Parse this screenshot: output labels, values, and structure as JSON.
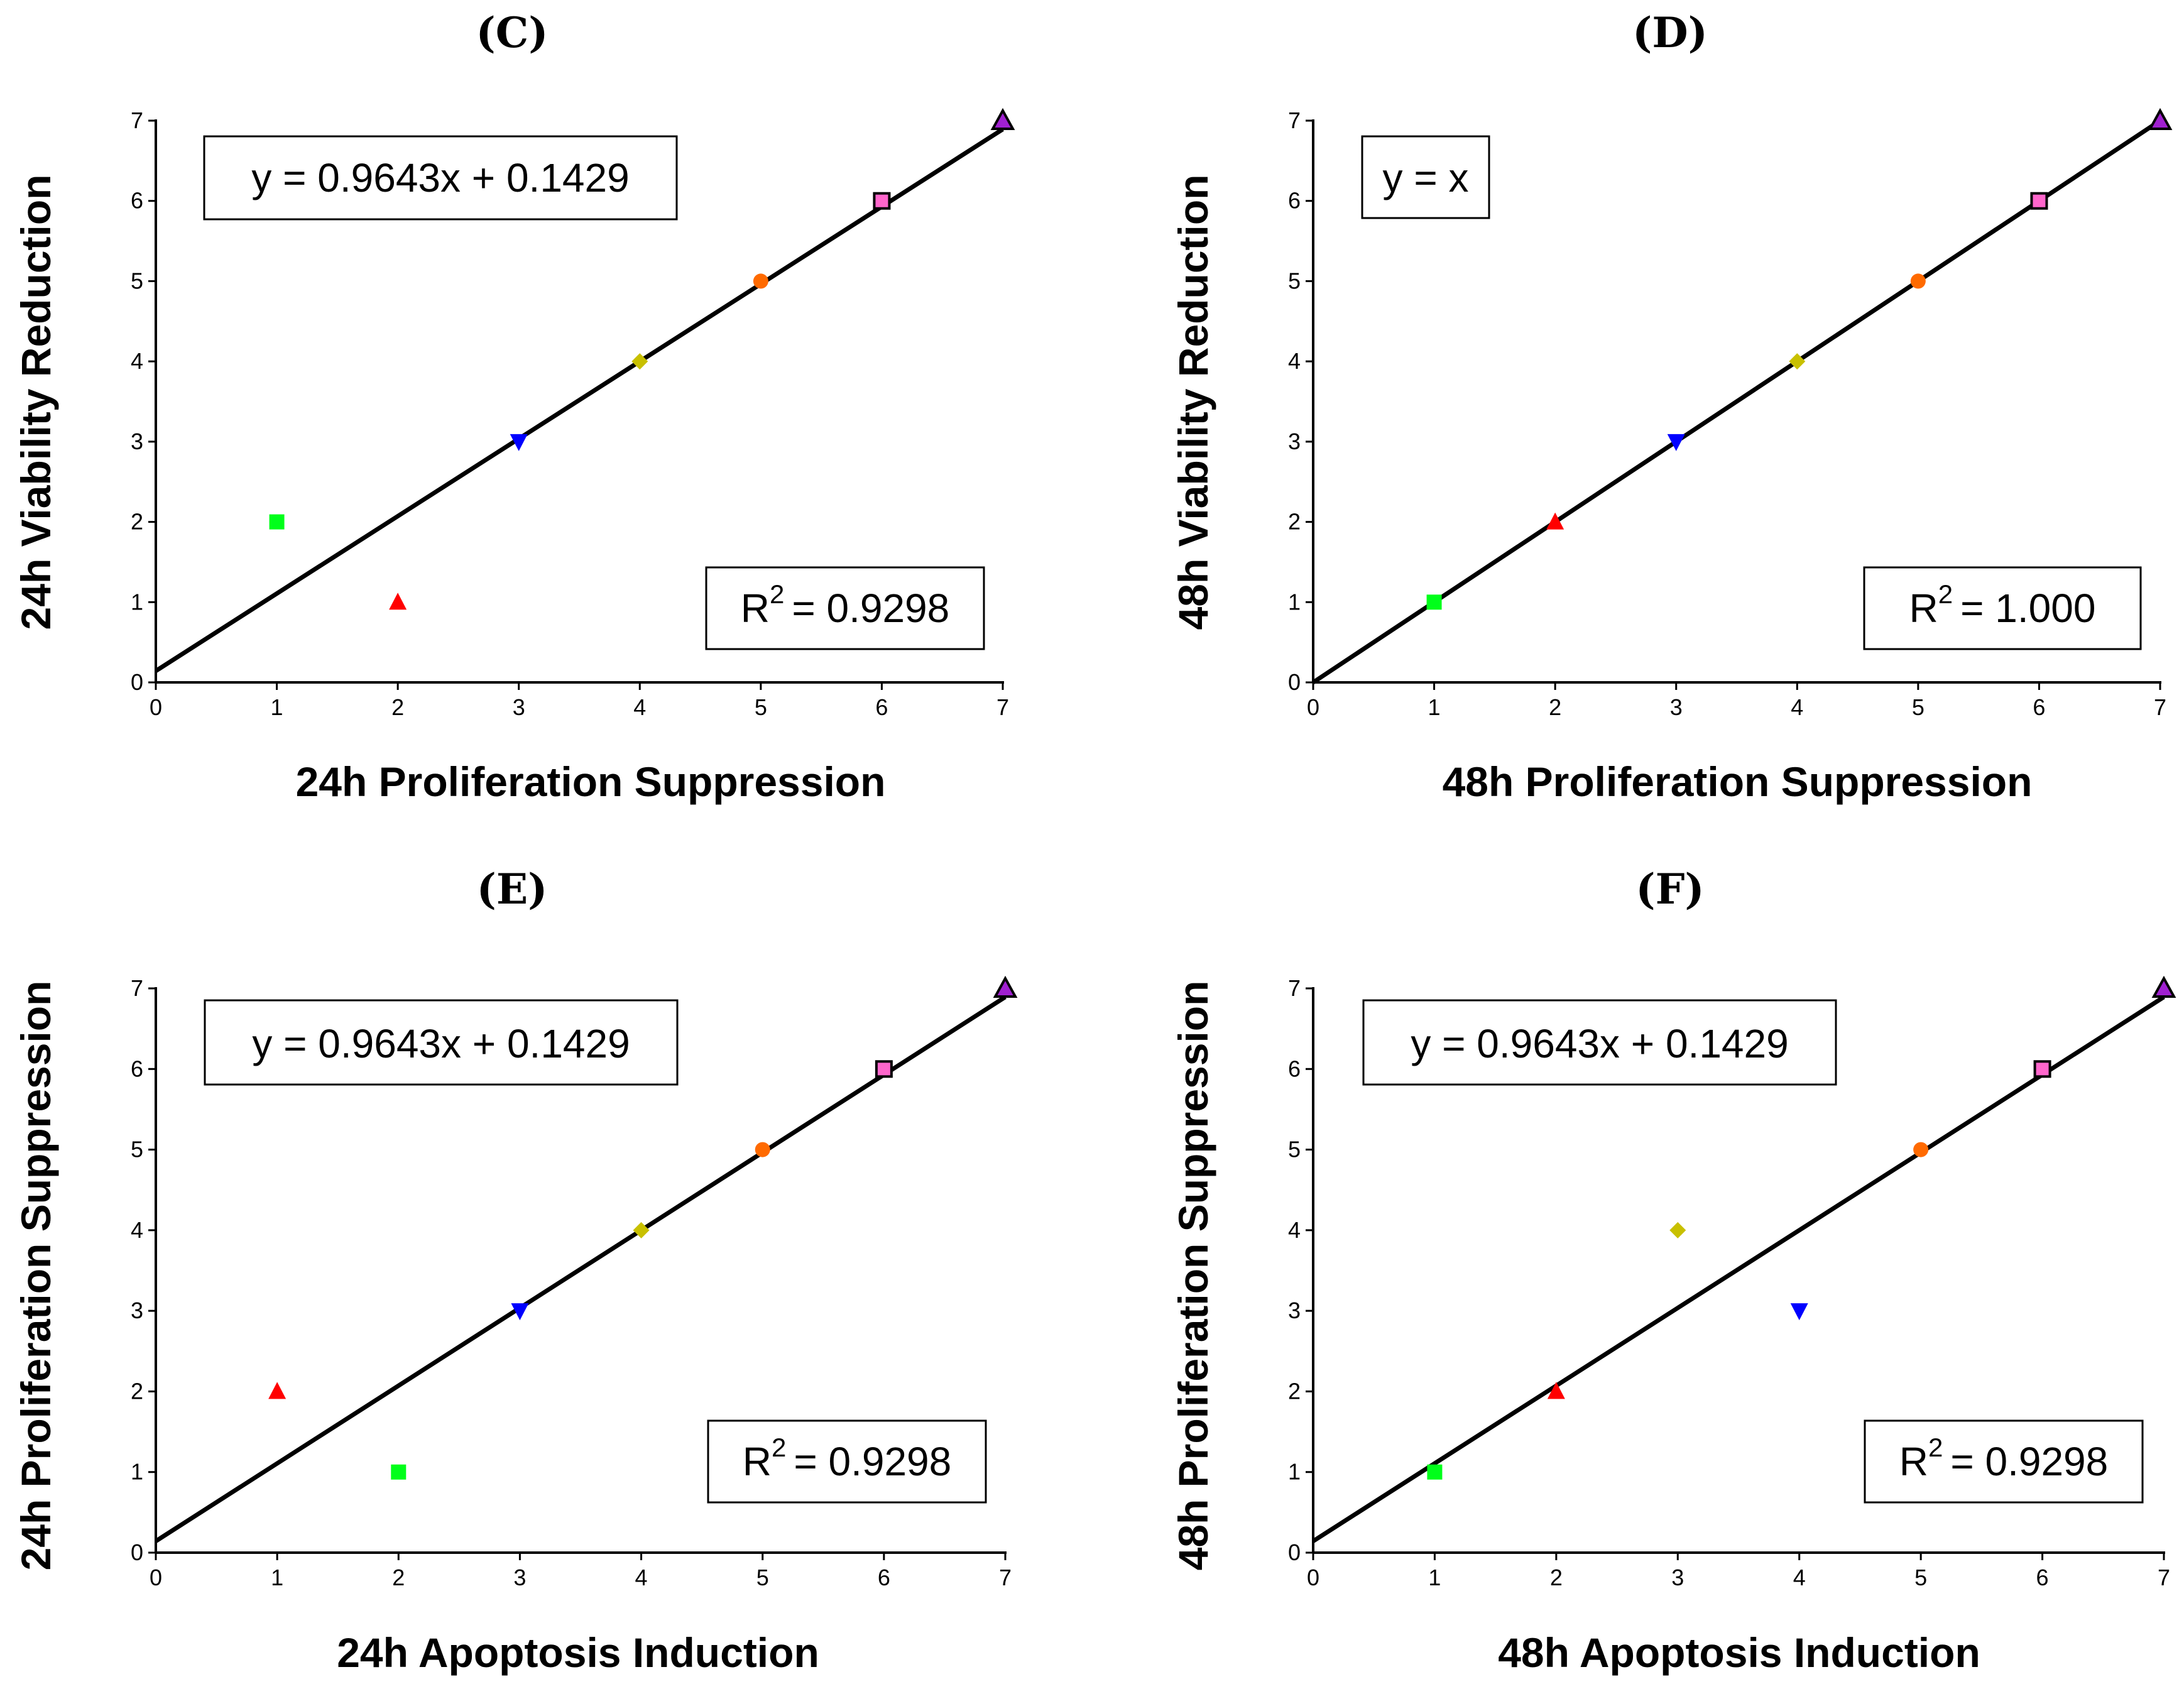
{
  "colors": {
    "square_green": "#00ff1a",
    "triangle_red": "#ff0000",
    "triangle_down_blue": "#0000ff",
    "diamond_olive": "#c8c000",
    "circle_orange": "#ff6a00",
    "square_pink": "#ff66cc",
    "triangle_purple": "#a020d0"
  },
  "chart_data": [
    {
      "panel": "(C)",
      "type": "scatter",
      "xlabel": "24h Proliferation Suppression",
      "ylabel": "24h Viability Reduction",
      "xlim": [
        0,
        7
      ],
      "ylim": [
        0,
        7
      ],
      "xticks": [
        "0",
        "1",
        "2",
        "3",
        "4",
        "5",
        "6",
        "7"
      ],
      "yticks": [
        "0",
        "1",
        "2",
        "3",
        "4",
        "5",
        "6",
        "7"
      ],
      "equation": "y = 0.9643x + 0.1429",
      "r2_label": "R",
      "r2_sup": "2",
      "r2_value": "= 0.9298",
      "fit": {
        "slope": 0.9643,
        "intercept": 0.1429
      },
      "points": [
        {
          "x": 1,
          "y": 2,
          "marker": "square",
          "color": "#00ff1a"
        },
        {
          "x": 2,
          "y": 1,
          "marker": "triangle-up",
          "color": "#ff0000"
        },
        {
          "x": 3,
          "y": 3,
          "marker": "triangle-down",
          "color": "#0000ff"
        },
        {
          "x": 4,
          "y": 4,
          "marker": "diamond",
          "color": "#c8c000"
        },
        {
          "x": 5,
          "y": 5,
          "marker": "circle",
          "color": "#ff6a00"
        },
        {
          "x": 6,
          "y": 6,
          "marker": "square-outline",
          "color": "#ff66cc"
        },
        {
          "x": 7,
          "y": 7,
          "marker": "triangle-outline",
          "color": "#a020d0"
        }
      ]
    },
    {
      "panel": "(D)",
      "type": "scatter",
      "xlabel": "48h Proliferation Suppression",
      "ylabel": "48h Viability Reduction",
      "xlim": [
        0,
        7
      ],
      "ylim": [
        0,
        7
      ],
      "xticks": [
        "0",
        "1",
        "2",
        "3",
        "4",
        "5",
        "6",
        "7"
      ],
      "yticks": [
        "0",
        "1",
        "2",
        "3",
        "4",
        "5",
        "6",
        "7"
      ],
      "equation": "y = x",
      "r2_label": "R",
      "r2_sup": "2",
      "r2_value": "= 1.000",
      "fit": {
        "slope": 1.0,
        "intercept": 0.0
      },
      "points": [
        {
          "x": 1,
          "y": 1,
          "marker": "square",
          "color": "#00ff1a"
        },
        {
          "x": 2,
          "y": 2,
          "marker": "triangle-up",
          "color": "#ff0000"
        },
        {
          "x": 3,
          "y": 3,
          "marker": "triangle-down",
          "color": "#0000ff"
        },
        {
          "x": 4,
          "y": 4,
          "marker": "diamond",
          "color": "#c8c000"
        },
        {
          "x": 5,
          "y": 5,
          "marker": "circle",
          "color": "#ff6a00"
        },
        {
          "x": 6,
          "y": 6,
          "marker": "square-outline",
          "color": "#ff66cc"
        },
        {
          "x": 7,
          "y": 7,
          "marker": "triangle-outline",
          "color": "#a020d0"
        }
      ]
    },
    {
      "panel": "(E)",
      "type": "scatter",
      "xlabel": "24h Apoptosis Induction",
      "ylabel": "24h Proliferation Suppression",
      "xlim": [
        0,
        7
      ],
      "ylim": [
        0,
        7
      ],
      "xticks": [
        "0",
        "1",
        "2",
        "3",
        "4",
        "5",
        "6",
        "7"
      ],
      "yticks": [
        "0",
        "1",
        "2",
        "3",
        "4",
        "5",
        "6",
        "7"
      ],
      "equation": "y = 0.9643x + 0.1429",
      "r2_label": "R",
      "r2_sup": "2",
      "r2_value": "= 0.9298",
      "fit": {
        "slope": 0.9643,
        "intercept": 0.1429
      },
      "points": [
        {
          "x": 1,
          "y": 2,
          "marker": "triangle-up",
          "color": "#ff0000"
        },
        {
          "x": 2,
          "y": 1,
          "marker": "square",
          "color": "#00ff1a"
        },
        {
          "x": 3,
          "y": 3,
          "marker": "triangle-down",
          "color": "#0000ff"
        },
        {
          "x": 4,
          "y": 4,
          "marker": "diamond",
          "color": "#c8c000"
        },
        {
          "x": 5,
          "y": 5,
          "marker": "circle",
          "color": "#ff6a00"
        },
        {
          "x": 6,
          "y": 6,
          "marker": "square-outline",
          "color": "#ff66cc"
        },
        {
          "x": 7,
          "y": 7,
          "marker": "triangle-outline",
          "color": "#a020d0"
        }
      ]
    },
    {
      "panel": "(F)",
      "type": "scatter",
      "xlabel": "48h Apoptosis Induction",
      "ylabel": "48h Proliferation Suppression",
      "xlim": [
        0,
        7
      ],
      "ylim": [
        0,
        7
      ],
      "xticks": [
        "0",
        "1",
        "2",
        "3",
        "4",
        "5",
        "6",
        "7"
      ],
      "yticks": [
        "0",
        "1",
        "2",
        "3",
        "4",
        "5",
        "6",
        "7"
      ],
      "equation": "y = 0.9643x + 0.1429",
      "r2_label": "R",
      "r2_sup": "2",
      "r2_value": "= 0.9298",
      "fit": {
        "slope": 0.9643,
        "intercept": 0.1429
      },
      "points": [
        {
          "x": 1,
          "y": 1,
          "marker": "square",
          "color": "#00ff1a"
        },
        {
          "x": 2,
          "y": 2,
          "marker": "triangle-up",
          "color": "#ff0000"
        },
        {
          "x": 3,
          "y": 4,
          "marker": "diamond",
          "color": "#c8c000"
        },
        {
          "x": 4,
          "y": 3,
          "marker": "triangle-down",
          "color": "#0000ff"
        },
        {
          "x": 5,
          "y": 5,
          "marker": "circle",
          "color": "#ff6a00"
        },
        {
          "x": 6,
          "y": 6,
          "marker": "square-outline",
          "color": "#ff66cc"
        },
        {
          "x": 7,
          "y": 7,
          "marker": "triangle-outline",
          "color": "#a020d0"
        }
      ]
    }
  ]
}
